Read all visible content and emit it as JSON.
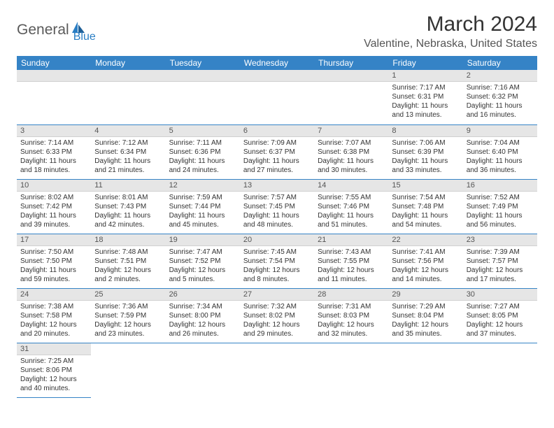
{
  "logo": {
    "part1": "General",
    "part2": "Blue"
  },
  "title": "March 2024",
  "location": "Valentine, Nebraska, United States",
  "colors": {
    "header_bg": "#3583c6",
    "header_fg": "#ffffff",
    "daynum_bg": "#e6e6e6",
    "border": "#3583c6",
    "logo_gray": "#5a5a5a",
    "logo_blue": "#2a7ec4"
  },
  "weekdays": [
    "Sunday",
    "Monday",
    "Tuesday",
    "Wednesday",
    "Thursday",
    "Friday",
    "Saturday"
  ],
  "weeks": [
    [
      null,
      null,
      null,
      null,
      null,
      {
        "n": "1",
        "sr": "Sunrise: 7:17 AM",
        "ss": "Sunset: 6:31 PM",
        "d1": "Daylight: 11 hours",
        "d2": "and 13 minutes."
      },
      {
        "n": "2",
        "sr": "Sunrise: 7:16 AM",
        "ss": "Sunset: 6:32 PM",
        "d1": "Daylight: 11 hours",
        "d2": "and 16 minutes."
      }
    ],
    [
      {
        "n": "3",
        "sr": "Sunrise: 7:14 AM",
        "ss": "Sunset: 6:33 PM",
        "d1": "Daylight: 11 hours",
        "d2": "and 18 minutes."
      },
      {
        "n": "4",
        "sr": "Sunrise: 7:12 AM",
        "ss": "Sunset: 6:34 PM",
        "d1": "Daylight: 11 hours",
        "d2": "and 21 minutes."
      },
      {
        "n": "5",
        "sr": "Sunrise: 7:11 AM",
        "ss": "Sunset: 6:36 PM",
        "d1": "Daylight: 11 hours",
        "d2": "and 24 minutes."
      },
      {
        "n": "6",
        "sr": "Sunrise: 7:09 AM",
        "ss": "Sunset: 6:37 PM",
        "d1": "Daylight: 11 hours",
        "d2": "and 27 minutes."
      },
      {
        "n": "7",
        "sr": "Sunrise: 7:07 AM",
        "ss": "Sunset: 6:38 PM",
        "d1": "Daylight: 11 hours",
        "d2": "and 30 minutes."
      },
      {
        "n": "8",
        "sr": "Sunrise: 7:06 AM",
        "ss": "Sunset: 6:39 PM",
        "d1": "Daylight: 11 hours",
        "d2": "and 33 minutes."
      },
      {
        "n": "9",
        "sr": "Sunrise: 7:04 AM",
        "ss": "Sunset: 6:40 PM",
        "d1": "Daylight: 11 hours",
        "d2": "and 36 minutes."
      }
    ],
    [
      {
        "n": "10",
        "sr": "Sunrise: 8:02 AM",
        "ss": "Sunset: 7:42 PM",
        "d1": "Daylight: 11 hours",
        "d2": "and 39 minutes."
      },
      {
        "n": "11",
        "sr": "Sunrise: 8:01 AM",
        "ss": "Sunset: 7:43 PM",
        "d1": "Daylight: 11 hours",
        "d2": "and 42 minutes."
      },
      {
        "n": "12",
        "sr": "Sunrise: 7:59 AM",
        "ss": "Sunset: 7:44 PM",
        "d1": "Daylight: 11 hours",
        "d2": "and 45 minutes."
      },
      {
        "n": "13",
        "sr": "Sunrise: 7:57 AM",
        "ss": "Sunset: 7:45 PM",
        "d1": "Daylight: 11 hours",
        "d2": "and 48 minutes."
      },
      {
        "n": "14",
        "sr": "Sunrise: 7:55 AM",
        "ss": "Sunset: 7:46 PM",
        "d1": "Daylight: 11 hours",
        "d2": "and 51 minutes."
      },
      {
        "n": "15",
        "sr": "Sunrise: 7:54 AM",
        "ss": "Sunset: 7:48 PM",
        "d1": "Daylight: 11 hours",
        "d2": "and 54 minutes."
      },
      {
        "n": "16",
        "sr": "Sunrise: 7:52 AM",
        "ss": "Sunset: 7:49 PM",
        "d1": "Daylight: 11 hours",
        "d2": "and 56 minutes."
      }
    ],
    [
      {
        "n": "17",
        "sr": "Sunrise: 7:50 AM",
        "ss": "Sunset: 7:50 PM",
        "d1": "Daylight: 11 hours",
        "d2": "and 59 minutes."
      },
      {
        "n": "18",
        "sr": "Sunrise: 7:48 AM",
        "ss": "Sunset: 7:51 PM",
        "d1": "Daylight: 12 hours",
        "d2": "and 2 minutes."
      },
      {
        "n": "19",
        "sr": "Sunrise: 7:47 AM",
        "ss": "Sunset: 7:52 PM",
        "d1": "Daylight: 12 hours",
        "d2": "and 5 minutes."
      },
      {
        "n": "20",
        "sr": "Sunrise: 7:45 AM",
        "ss": "Sunset: 7:54 PM",
        "d1": "Daylight: 12 hours",
        "d2": "and 8 minutes."
      },
      {
        "n": "21",
        "sr": "Sunrise: 7:43 AM",
        "ss": "Sunset: 7:55 PM",
        "d1": "Daylight: 12 hours",
        "d2": "and 11 minutes."
      },
      {
        "n": "22",
        "sr": "Sunrise: 7:41 AM",
        "ss": "Sunset: 7:56 PM",
        "d1": "Daylight: 12 hours",
        "d2": "and 14 minutes."
      },
      {
        "n": "23",
        "sr": "Sunrise: 7:39 AM",
        "ss": "Sunset: 7:57 PM",
        "d1": "Daylight: 12 hours",
        "d2": "and 17 minutes."
      }
    ],
    [
      {
        "n": "24",
        "sr": "Sunrise: 7:38 AM",
        "ss": "Sunset: 7:58 PM",
        "d1": "Daylight: 12 hours",
        "d2": "and 20 minutes."
      },
      {
        "n": "25",
        "sr": "Sunrise: 7:36 AM",
        "ss": "Sunset: 7:59 PM",
        "d1": "Daylight: 12 hours",
        "d2": "and 23 minutes."
      },
      {
        "n": "26",
        "sr": "Sunrise: 7:34 AM",
        "ss": "Sunset: 8:00 PM",
        "d1": "Daylight: 12 hours",
        "d2": "and 26 minutes."
      },
      {
        "n": "27",
        "sr": "Sunrise: 7:32 AM",
        "ss": "Sunset: 8:02 PM",
        "d1": "Daylight: 12 hours",
        "d2": "and 29 minutes."
      },
      {
        "n": "28",
        "sr": "Sunrise: 7:31 AM",
        "ss": "Sunset: 8:03 PM",
        "d1": "Daylight: 12 hours",
        "d2": "and 32 minutes."
      },
      {
        "n": "29",
        "sr": "Sunrise: 7:29 AM",
        "ss": "Sunset: 8:04 PM",
        "d1": "Daylight: 12 hours",
        "d2": "and 35 minutes."
      },
      {
        "n": "30",
        "sr": "Sunrise: 7:27 AM",
        "ss": "Sunset: 8:05 PM",
        "d1": "Daylight: 12 hours",
        "d2": "and 37 minutes."
      }
    ],
    [
      {
        "n": "31",
        "sr": "Sunrise: 7:25 AM",
        "ss": "Sunset: 8:06 PM",
        "d1": "Daylight: 12 hours",
        "d2": "and 40 minutes."
      },
      null,
      null,
      null,
      null,
      null,
      null
    ]
  ]
}
